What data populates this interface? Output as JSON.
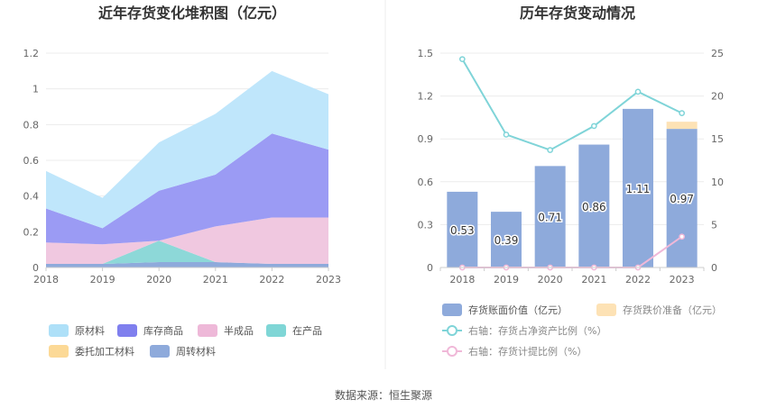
{
  "source": "数据来源：恒生聚源",
  "chart_data": [
    {
      "type": "area",
      "stacked": true,
      "title": "近年存货变化堆积图（亿元）",
      "categories": [
        "2018",
        "2019",
        "2020",
        "2021",
        "2022",
        "2023"
      ],
      "ylim": [
        0,
        1.2
      ],
      "yticks": [
        "0",
        "0.2",
        "0.4",
        "0.6",
        "0.8",
        "1",
        "1.2"
      ],
      "series": [
        {
          "name": "周转材料",
          "color": "#8eaadb",
          "values": [
            0.02,
            0.02,
            0.03,
            0.03,
            0.02,
            0.02
          ]
        },
        {
          "name": "委托加工材料",
          "color": "#fcd996",
          "values": [
            0,
            0,
            0,
            0,
            0,
            0
          ]
        },
        {
          "name": "在产品",
          "color": "#8dd8d8",
          "values": [
            0,
            0,
            0.12,
            0,
            0,
            0
          ]
        },
        {
          "name": "半成品",
          "color": "#f0c8e0",
          "values": [
            0.12,
            0.11,
            0,
            0.2,
            0.26,
            0.26
          ]
        },
        {
          "name": "库存商品",
          "color": "#9b9bf4",
          "values": [
            0.19,
            0.09,
            0.28,
            0.29,
            0.47,
            0.38
          ]
        },
        {
          "name": "原材料",
          "color": "#bfe6fb",
          "values": [
            0.21,
            0.17,
            0.27,
            0.34,
            0.35,
            0.31
          ]
        }
      ],
      "legend_order": [
        "原材料",
        "库存商品",
        "半成品",
        "在产品",
        "委托加工材料",
        "周转材料"
      ],
      "legend_colors": {
        "原材料": "#aee0f8",
        "库存商品": "#7f7fee",
        "半成品": "#eeb8d8",
        "在产品": "#7fd6d6",
        "委托加工材料": "#fcd996",
        "周转材料": "#8eaadb"
      },
      "legend_position": "bottom"
    },
    {
      "type": "bar",
      "title": "历年存货变动情况",
      "categories": [
        "2018",
        "2019",
        "2020",
        "2021",
        "2022",
        "2023"
      ],
      "ylim": [
        0,
        1.5
      ],
      "yticks": [
        "0",
        "0.3",
        "0.6",
        "0.9",
        "1.2",
        "1.5"
      ],
      "y2lim": [
        0,
        25
      ],
      "y2ticks": [
        "0",
        "5",
        "10",
        "15",
        "20",
        "25"
      ],
      "series": [
        {
          "name": "存货账面价值（亿元）",
          "kind": "bar",
          "color": "#8eaadb",
          "values": [
            0.53,
            0.39,
            0.71,
            0.86,
            1.11,
            0.97
          ],
          "labels": [
            "0.53",
            "0.39",
            "0.71",
            "0.86",
            "1.11",
            "0.97"
          ]
        },
        {
          "name": "存货跌价准备（亿元）",
          "kind": "bar",
          "color": "#fde2b5",
          "values": [
            0,
            0,
            0,
            0,
            0,
            0.05
          ]
        },
        {
          "name": "右轴：存货占净资产比例（%）",
          "kind": "line",
          "axis": "right",
          "color": "#7fd4d8",
          "values": [
            24.3,
            15.5,
            13.7,
            16.5,
            20.5,
            18.0
          ]
        },
        {
          "name": "右轴：存货计提比例（%）",
          "kind": "line",
          "axis": "right",
          "color": "#f0b8d8",
          "values": [
            0,
            0,
            0,
            0,
            0,
            3.6
          ]
        }
      ],
      "legend_position": "bottom"
    }
  ]
}
